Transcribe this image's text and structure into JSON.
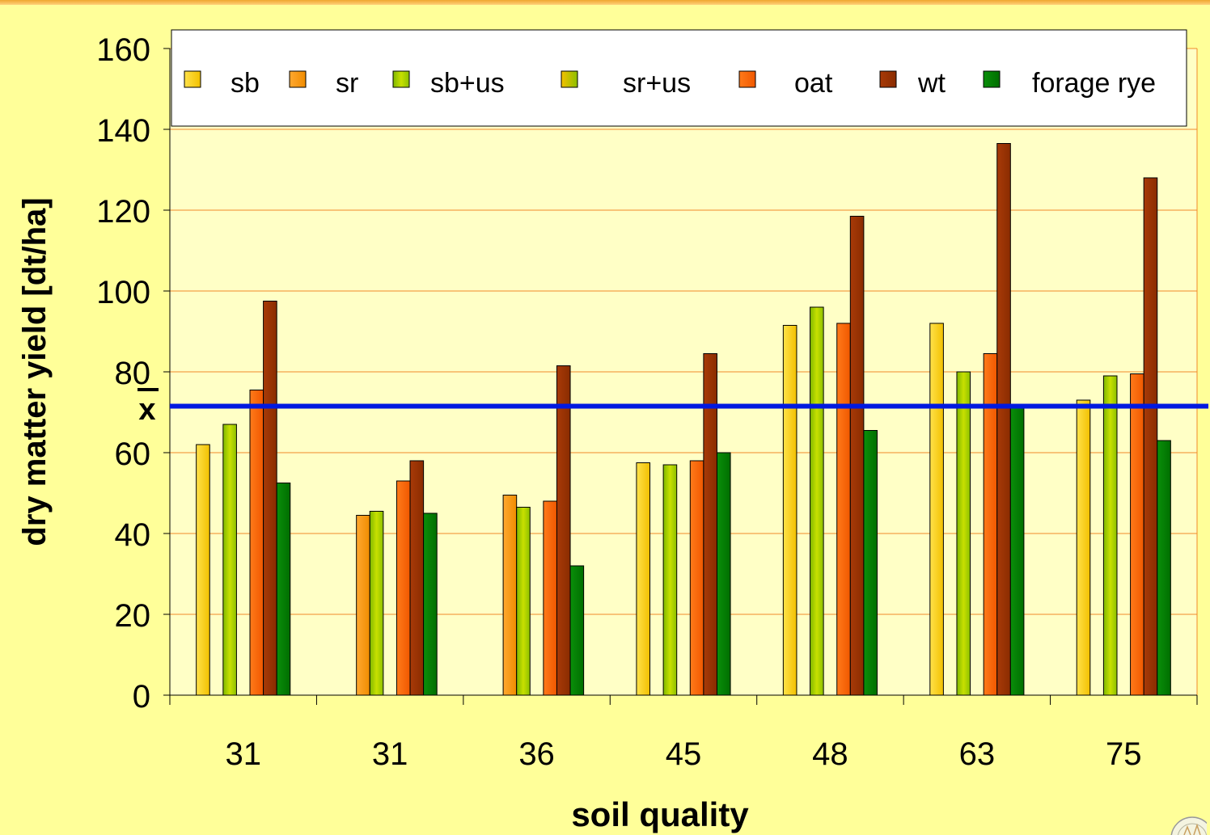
{
  "chart_data": {
    "type": "bar",
    "title": "",
    "xlabel": "soil quality",
    "ylabel": "dry matter yield [dt/ha]",
    "categories": [
      "31",
      "31",
      "36",
      "45",
      "48",
      "63",
      "75"
    ],
    "ylim": [
      0,
      160
    ],
    "yticks": [
      "0",
      "20",
      "40",
      "60",
      "80",
      "100",
      "120",
      "140",
      "160"
    ],
    "grid": true,
    "legend_position": "top",
    "series": [
      {
        "name": "sb",
        "color": "#ffcc00",
        "values": [
          62,
          null,
          null,
          57.5,
          91.5,
          92,
          73
        ]
      },
      {
        "name": "sr",
        "color": "#ff9900",
        "values": [
          null,
          44.5,
          49.5,
          null,
          null,
          null,
          null
        ]
      },
      {
        "name": "sb+us",
        "color": "#99cc00",
        "values": [
          67,
          45.5,
          46.5,
          57,
          96,
          80,
          79
        ]
      },
      {
        "name": "sr+us",
        "color": "#ccb000",
        "values": [
          null,
          null,
          null,
          null,
          null,
          null,
          null
        ]
      },
      {
        "name": "oat",
        "color": "#ff6600",
        "values": [
          75.5,
          53,
          48,
          58,
          92,
          84.5,
          79.5
        ]
      },
      {
        "name": "wt",
        "color": "#993300",
        "values": [
          97.5,
          58,
          81.5,
          84.5,
          118.5,
          136.5,
          128
        ]
      },
      {
        "name": "forage rye",
        "color": "#008000",
        "values": [
          52.5,
          45,
          32,
          60,
          65.5,
          72,
          63
        ]
      }
    ],
    "mean_line": {
      "label": "x",
      "value": 71.5,
      "color": "#0019e0"
    }
  }
}
